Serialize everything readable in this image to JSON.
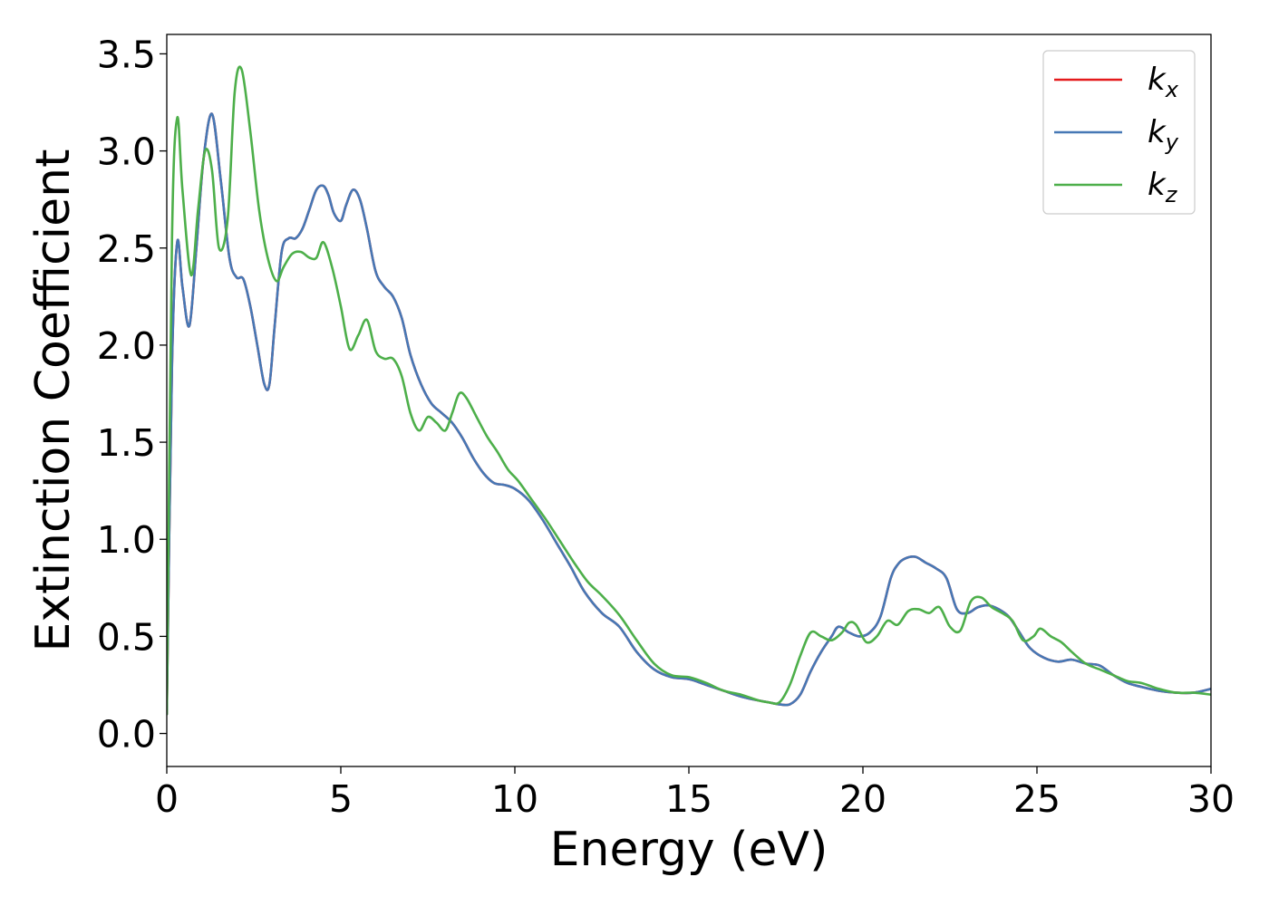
{
  "chart_data": {
    "type": "line",
    "title": "",
    "xlabel": "Energy (eV)",
    "ylabel": "Extinction Coefficient",
    "xlim": [
      0,
      30
    ],
    "ylim": [
      -0.17,
      3.6
    ],
    "xticks": [
      0,
      5,
      10,
      15,
      20,
      25,
      30
    ],
    "xtick_labels": [
      "0",
      "5",
      "10",
      "15",
      "20",
      "25",
      "30"
    ],
    "yticks": [
      0.0,
      0.5,
      1.0,
      1.5,
      2.0,
      2.5,
      3.0,
      3.5
    ],
    "ytick_labels": [
      "0.0",
      "0.5",
      "1.0",
      "1.5",
      "2.0",
      "2.5",
      "3.0",
      "3.5"
    ],
    "grid": false,
    "legend_position": "top-right",
    "series": [
      {
        "name": "k",
        "subscript": "x",
        "color": "#e41a1c",
        "x": [
          0,
          0.15,
          0.3,
          0.45,
          0.65,
          0.85,
          1.05,
          1.3,
          1.55,
          1.8,
          2.0,
          2.2,
          2.4,
          2.6,
          2.8,
          2.95,
          3.1,
          3.3,
          3.5,
          3.7,
          3.9,
          4.1,
          4.3,
          4.5,
          4.65,
          4.8,
          5.0,
          5.15,
          5.35,
          5.55,
          5.75,
          6.0,
          6.25,
          6.5,
          6.75,
          7.0,
          7.3,
          7.6,
          7.9,
          8.2,
          8.5,
          8.8,
          9.1,
          9.4,
          9.7,
          10.0,
          10.4,
          10.8,
          11.2,
          11.6,
          12.0,
          12.5,
          13.0,
          13.5,
          14.0,
          14.5,
          15.0,
          15.5,
          16.0,
          16.5,
          17.0,
          17.3,
          17.6,
          17.9,
          18.2,
          18.5,
          18.8,
          19.1,
          19.3,
          19.6,
          19.9,
          20.2,
          20.5,
          20.8,
          21.0,
          21.2,
          21.5,
          21.8,
          22.1,
          22.4,
          22.7,
          23.0,
          23.3,
          23.6,
          23.9,
          24.2,
          24.5,
          24.8,
          25.2,
          25.6,
          26.0,
          26.4,
          26.8,
          27.2,
          27.6,
          28.0,
          28.5,
          29.0,
          29.5,
          30.0
        ],
        "y": [
          0.1,
          1.9,
          2.53,
          2.3,
          2.1,
          2.5,
          2.95,
          3.19,
          2.85,
          2.45,
          2.35,
          2.34,
          2.2,
          2.0,
          1.8,
          1.8,
          2.1,
          2.48,
          2.55,
          2.55,
          2.6,
          2.7,
          2.8,
          2.82,
          2.77,
          2.68,
          2.64,
          2.72,
          2.8,
          2.75,
          2.6,
          2.38,
          2.3,
          2.25,
          2.14,
          1.95,
          1.8,
          1.7,
          1.65,
          1.6,
          1.52,
          1.42,
          1.34,
          1.29,
          1.28,
          1.26,
          1.2,
          1.1,
          0.98,
          0.86,
          0.73,
          0.62,
          0.55,
          0.42,
          0.33,
          0.29,
          0.28,
          0.25,
          0.22,
          0.19,
          0.17,
          0.16,
          0.15,
          0.15,
          0.2,
          0.32,
          0.42,
          0.5,
          0.55,
          0.52,
          0.5,
          0.52,
          0.6,
          0.8,
          0.87,
          0.9,
          0.91,
          0.88,
          0.85,
          0.8,
          0.64,
          0.62,
          0.65,
          0.66,
          0.64,
          0.6,
          0.52,
          0.44,
          0.39,
          0.37,
          0.38,
          0.36,
          0.35,
          0.3,
          0.26,
          0.24,
          0.22,
          0.21,
          0.21,
          0.23
        ]
      },
      {
        "name": "k",
        "subscript": "y",
        "color": "#4678b5",
        "x": [
          0,
          0.15,
          0.3,
          0.45,
          0.65,
          0.85,
          1.05,
          1.3,
          1.55,
          1.8,
          2.0,
          2.2,
          2.4,
          2.6,
          2.8,
          2.95,
          3.1,
          3.3,
          3.5,
          3.7,
          3.9,
          4.1,
          4.3,
          4.5,
          4.65,
          4.8,
          5.0,
          5.15,
          5.35,
          5.55,
          5.75,
          6.0,
          6.25,
          6.5,
          6.75,
          7.0,
          7.3,
          7.6,
          7.9,
          8.2,
          8.5,
          8.8,
          9.1,
          9.4,
          9.7,
          10.0,
          10.4,
          10.8,
          11.2,
          11.6,
          12.0,
          12.5,
          13.0,
          13.5,
          14.0,
          14.5,
          15.0,
          15.5,
          16.0,
          16.5,
          17.0,
          17.3,
          17.6,
          17.9,
          18.2,
          18.5,
          18.8,
          19.1,
          19.3,
          19.6,
          19.9,
          20.2,
          20.5,
          20.8,
          21.0,
          21.2,
          21.5,
          21.8,
          22.1,
          22.4,
          22.7,
          23.0,
          23.3,
          23.6,
          23.9,
          24.2,
          24.5,
          24.8,
          25.2,
          25.6,
          26.0,
          26.4,
          26.8,
          27.2,
          27.6,
          28.0,
          28.5,
          29.0,
          29.5,
          30.0
        ],
        "y": [
          0.1,
          1.9,
          2.53,
          2.3,
          2.1,
          2.5,
          2.95,
          3.19,
          2.85,
          2.45,
          2.35,
          2.34,
          2.2,
          2.0,
          1.8,
          1.8,
          2.1,
          2.48,
          2.55,
          2.55,
          2.6,
          2.7,
          2.8,
          2.82,
          2.77,
          2.68,
          2.64,
          2.72,
          2.8,
          2.75,
          2.6,
          2.38,
          2.3,
          2.25,
          2.14,
          1.95,
          1.8,
          1.7,
          1.65,
          1.6,
          1.52,
          1.42,
          1.34,
          1.29,
          1.28,
          1.26,
          1.2,
          1.1,
          0.98,
          0.86,
          0.73,
          0.62,
          0.55,
          0.42,
          0.33,
          0.29,
          0.28,
          0.25,
          0.22,
          0.19,
          0.17,
          0.16,
          0.15,
          0.15,
          0.2,
          0.32,
          0.42,
          0.5,
          0.55,
          0.52,
          0.5,
          0.52,
          0.6,
          0.8,
          0.87,
          0.9,
          0.91,
          0.88,
          0.85,
          0.8,
          0.64,
          0.62,
          0.65,
          0.66,
          0.64,
          0.6,
          0.52,
          0.44,
          0.39,
          0.37,
          0.38,
          0.36,
          0.35,
          0.3,
          0.26,
          0.24,
          0.22,
          0.21,
          0.21,
          0.23
        ]
      },
      {
        "name": "k",
        "subscript": "z",
        "color": "#4daf4a",
        "x": [
          0,
          0.15,
          0.3,
          0.45,
          0.7,
          0.9,
          1.1,
          1.3,
          1.5,
          1.75,
          1.95,
          2.15,
          2.4,
          2.65,
          2.9,
          3.15,
          3.35,
          3.6,
          3.85,
          4.1,
          4.3,
          4.5,
          4.75,
          5.0,
          5.25,
          5.5,
          5.75,
          6.0,
          6.25,
          6.5,
          6.75,
          7.0,
          7.25,
          7.5,
          7.75,
          8.0,
          8.2,
          8.4,
          8.6,
          8.9,
          9.2,
          9.5,
          9.8,
          10.1,
          10.5,
          10.9,
          11.3,
          11.7,
          12.1,
          12.5,
          13.0,
          13.5,
          14.0,
          14.5,
          15.0,
          15.5,
          16.0,
          16.5,
          17.0,
          17.3,
          17.6,
          17.9,
          18.2,
          18.5,
          18.8,
          19.1,
          19.4,
          19.6,
          19.8,
          20.1,
          20.4,
          20.7,
          21.0,
          21.3,
          21.6,
          21.9,
          22.2,
          22.5,
          22.8,
          23.1,
          23.4,
          23.7,
          24.0,
          24.3,
          24.6,
          24.9,
          25.1,
          25.4,
          25.7,
          26.0,
          26.4,
          26.8,
          27.2,
          27.6,
          28.0,
          28.5,
          29.0,
          29.5,
          30.0
        ],
        "y": [
          0.1,
          2.55,
          3.17,
          2.8,
          2.36,
          2.7,
          3.0,
          2.9,
          2.5,
          2.65,
          3.3,
          3.42,
          3.1,
          2.7,
          2.45,
          2.33,
          2.4,
          2.47,
          2.48,
          2.45,
          2.45,
          2.53,
          2.4,
          2.2,
          1.98,
          2.05,
          2.13,
          1.97,
          1.93,
          1.93,
          1.84,
          1.65,
          1.56,
          1.63,
          1.6,
          1.56,
          1.65,
          1.75,
          1.73,
          1.63,
          1.53,
          1.45,
          1.36,
          1.3,
          1.2,
          1.1,
          0.99,
          0.88,
          0.78,
          0.71,
          0.61,
          0.48,
          0.36,
          0.3,
          0.29,
          0.26,
          0.22,
          0.2,
          0.17,
          0.16,
          0.16,
          0.25,
          0.4,
          0.52,
          0.5,
          0.48,
          0.52,
          0.57,
          0.56,
          0.47,
          0.5,
          0.58,
          0.56,
          0.63,
          0.64,
          0.62,
          0.65,
          0.55,
          0.53,
          0.68,
          0.7,
          0.65,
          0.62,
          0.58,
          0.48,
          0.5,
          0.54,
          0.5,
          0.47,
          0.42,
          0.36,
          0.33,
          0.3,
          0.27,
          0.26,
          0.23,
          0.21,
          0.21,
          0.2
        ]
      }
    ]
  }
}
